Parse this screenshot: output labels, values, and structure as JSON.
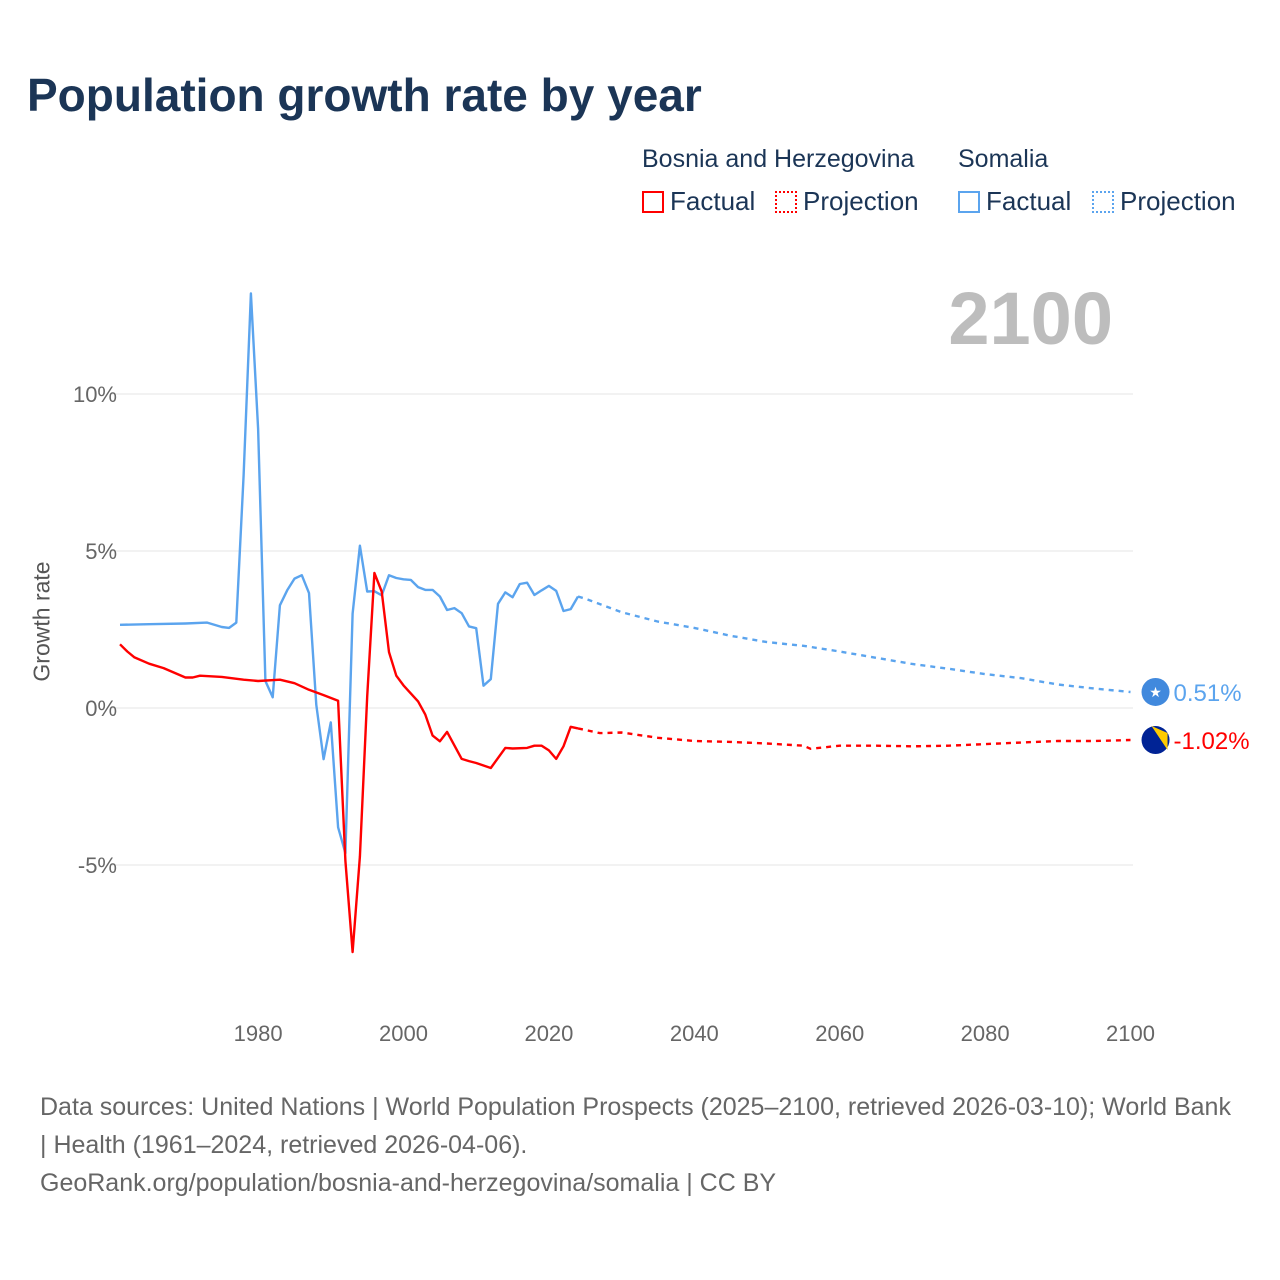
{
  "title": "Population growth rate by year",
  "legend": {
    "groups": [
      {
        "name": "Bosnia and Herzegovina",
        "factual": "Factual",
        "projection": "Projection",
        "color": "#ff0000"
      },
      {
        "name": "Somalia",
        "factual": "Factual",
        "projection": "Projection",
        "color": "#5ba4ee"
      }
    ]
  },
  "current_year": "2100",
  "footer": {
    "sources": "Data sources: United Nations | World Population Prospects (2025–2100, retrieved 2026-03-10); World Bank | Health (1961–2024, retrieved 2026-04-06).",
    "link": "GeoRank.org/population/bosnia-and-herzegovina/somalia | CC BY"
  },
  "chart_data": {
    "type": "line",
    "title": "Population growth rate by year",
    "xlabel": "",
    "ylabel": "Growth rate",
    "xlim": [
      1961,
      2100
    ],
    "ylim": [
      -9,
      13.5
    ],
    "x_ticks": [
      "1980",
      "2000",
      "2020",
      "2040",
      "2060",
      "2080",
      "2100"
    ],
    "y_ticks": [
      {
        "v": 10,
        "label": "10%"
      },
      {
        "v": 5,
        "label": "5%"
      },
      {
        "v": 0,
        "label": "0%"
      },
      {
        "v": -5,
        "label": "-5%"
      }
    ],
    "grid": true,
    "legend_position": "top-right",
    "series": [
      {
        "name": "Somalia",
        "color": "#5ba4ee",
        "end_label": "0.51%",
        "factual": [
          [
            1961,
            2.65
          ],
          [
            1965,
            2.67
          ],
          [
            1970,
            2.69
          ],
          [
            1973,
            2.72
          ],
          [
            1975,
            2.58
          ],
          [
            1976,
            2.55
          ],
          [
            1977,
            2.72
          ],
          [
            1978,
            7.4
          ],
          [
            1979,
            13.2
          ],
          [
            1980,
            8.9
          ],
          [
            1981,
            0.86
          ],
          [
            1982,
            0.34
          ],
          [
            1983,
            3.27
          ],
          [
            1984,
            3.75
          ],
          [
            1985,
            4.12
          ],
          [
            1986,
            4.23
          ],
          [
            1987,
            3.66
          ],
          [
            1988,
            0.1
          ],
          [
            1989,
            -1.63
          ],
          [
            1990,
            -0.46
          ],
          [
            1991,
            -3.8
          ],
          [
            1992,
            -4.62
          ],
          [
            1993,
            3.0
          ],
          [
            1994,
            5.17
          ],
          [
            1995,
            3.71
          ],
          [
            1996,
            3.72
          ],
          [
            1997,
            3.59
          ],
          [
            1998,
            4.23
          ],
          [
            1999,
            4.14
          ],
          [
            2000,
            4.1
          ],
          [
            2001,
            4.08
          ],
          [
            2002,
            3.85
          ],
          [
            2003,
            3.76
          ],
          [
            2004,
            3.76
          ],
          [
            2005,
            3.55
          ],
          [
            2006,
            3.12
          ],
          [
            2007,
            3.18
          ],
          [
            2008,
            3.02
          ],
          [
            2009,
            2.6
          ],
          [
            2010,
            2.54
          ],
          [
            2011,
            0.71
          ],
          [
            2012,
            0.92
          ],
          [
            2013,
            3.32
          ],
          [
            2014,
            3.68
          ],
          [
            2015,
            3.53
          ],
          [
            2016,
            3.95
          ],
          [
            2017,
            3.99
          ],
          [
            2018,
            3.6
          ],
          [
            2019,
            3.75
          ],
          [
            2020,
            3.89
          ],
          [
            2021,
            3.73
          ],
          [
            2022,
            3.09
          ],
          [
            2023,
            3.15
          ],
          [
            2024,
            3.55
          ]
        ],
        "projection": [
          [
            2024,
            3.55
          ],
          [
            2025,
            3.48
          ],
          [
            2030,
            3.05
          ],
          [
            2035,
            2.75
          ],
          [
            2040,
            2.55
          ],
          [
            2045,
            2.3
          ],
          [
            2050,
            2.1
          ],
          [
            2055,
            1.98
          ],
          [
            2060,
            1.8
          ],
          [
            2065,
            1.6
          ],
          [
            2070,
            1.4
          ],
          [
            2075,
            1.25
          ],
          [
            2080,
            1.08
          ],
          [
            2085,
            0.95
          ],
          [
            2090,
            0.75
          ],
          [
            2095,
            0.62
          ],
          [
            2100,
            0.51
          ]
        ]
      },
      {
        "name": "Bosnia and Herzegovina",
        "color": "#ff0000",
        "end_label": "-1.02%",
        "factual": [
          [
            1961,
            2.03
          ],
          [
            1962,
            1.8
          ],
          [
            1963,
            1.61
          ],
          [
            1965,
            1.41
          ],
          [
            1967,
            1.27
          ],
          [
            1970,
            0.97
          ],
          [
            1971,
            0.97
          ],
          [
            1972,
            1.03
          ],
          [
            1975,
            0.99
          ],
          [
            1978,
            0.9
          ],
          [
            1980,
            0.86
          ],
          [
            1983,
            0.9
          ],
          [
            1985,
            0.79
          ],
          [
            1987,
            0.58
          ],
          [
            1989,
            0.41
          ],
          [
            1991,
            0.23
          ],
          [
            1992,
            -4.87
          ],
          [
            1993,
            -7.77
          ],
          [
            1994,
            -4.73
          ],
          [
            1995,
            0.37
          ],
          [
            1996,
            4.3
          ],
          [
            1997,
            3.71
          ],
          [
            1998,
            1.78
          ],
          [
            1999,
            1.03
          ],
          [
            2000,
            0.72
          ],
          [
            2002,
            0.21
          ],
          [
            2003,
            -0.21
          ],
          [
            2004,
            -0.88
          ],
          [
            2005,
            -1.06
          ],
          [
            2006,
            -0.76
          ],
          [
            2008,
            -1.62
          ],
          [
            2009,
            -1.69
          ],
          [
            2010,
            -1.75
          ],
          [
            2012,
            -1.91
          ],
          [
            2014,
            -1.27
          ],
          [
            2015,
            -1.29
          ],
          [
            2017,
            -1.27
          ],
          [
            2018,
            -1.2
          ],
          [
            2019,
            -1.2
          ],
          [
            2020,
            -1.35
          ],
          [
            2021,
            -1.62
          ],
          [
            2022,
            -1.22
          ],
          [
            2023,
            -0.6
          ],
          [
            2024,
            -0.65
          ]
        ],
        "projection": [
          [
            2024,
            -0.65
          ],
          [
            2027,
            -0.8
          ],
          [
            2030,
            -0.78
          ],
          [
            2035,
            -0.95
          ],
          [
            2040,
            -1.05
          ],
          [
            2045,
            -1.08
          ],
          [
            2050,
            -1.13
          ],
          [
            2055,
            -1.2
          ],
          [
            2056,
            -1.3
          ],
          [
            2060,
            -1.2
          ],
          [
            2065,
            -1.2
          ],
          [
            2070,
            -1.22
          ],
          [
            2075,
            -1.2
          ],
          [
            2080,
            -1.15
          ],
          [
            2085,
            -1.1
          ],
          [
            2090,
            -1.05
          ],
          [
            2095,
            -1.05
          ],
          [
            2100,
            -1.02
          ]
        ]
      }
    ]
  }
}
